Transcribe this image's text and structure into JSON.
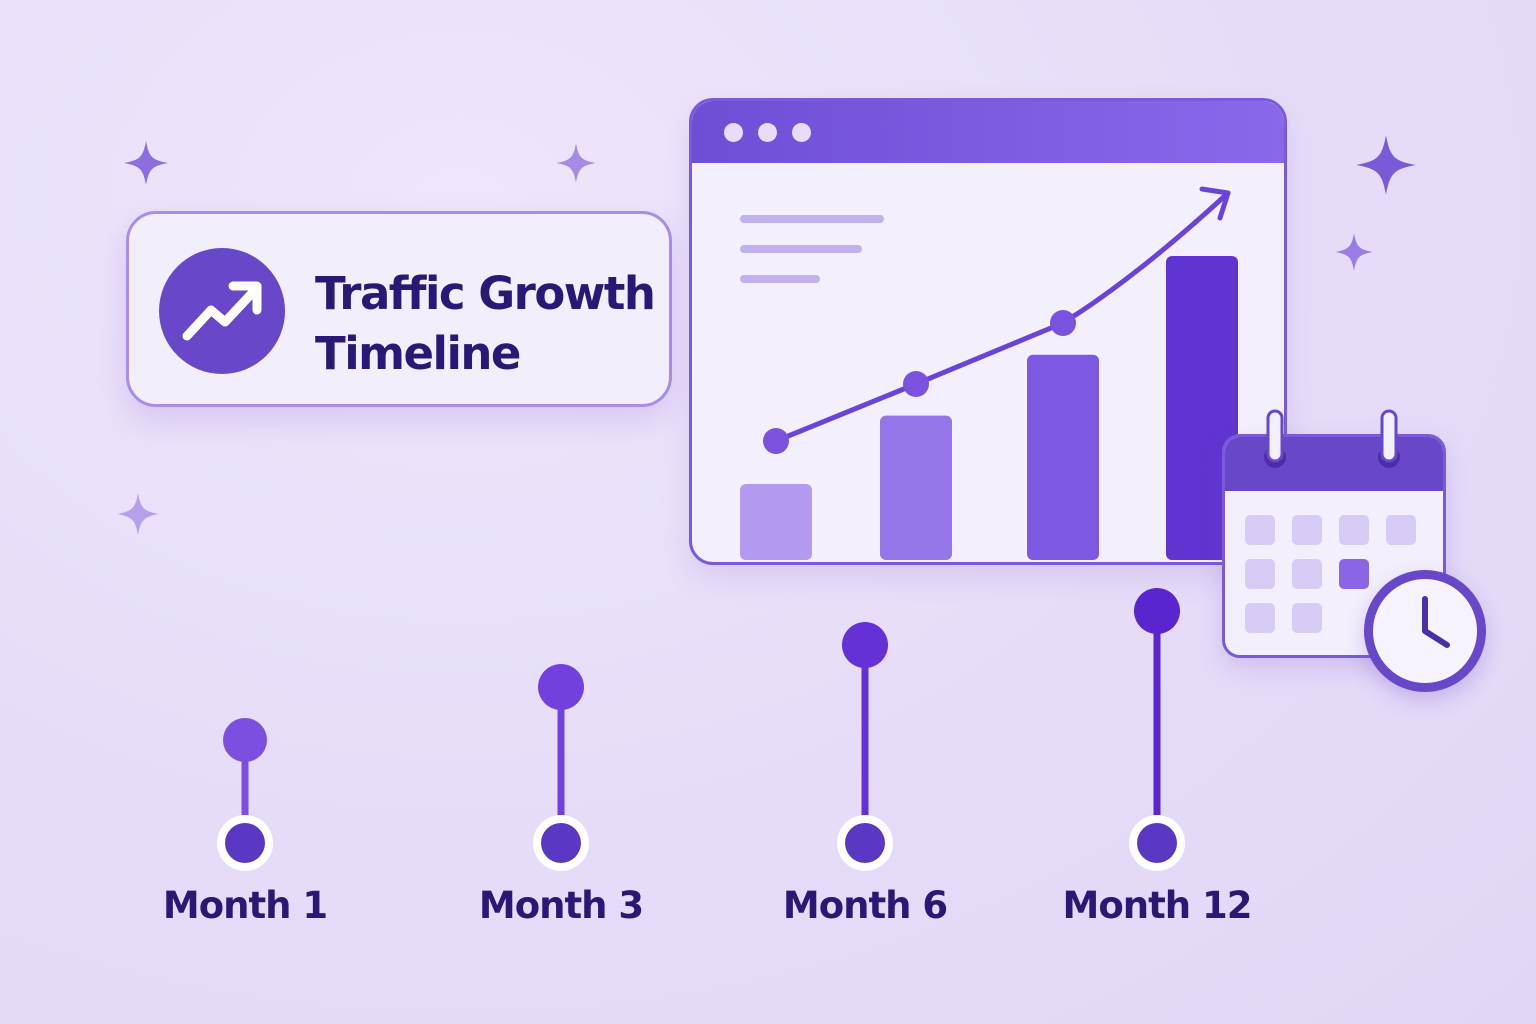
{
  "title": {
    "line1": "Traffic Growth",
    "line2": "Timeline"
  },
  "timeline": {
    "milestones": [
      {
        "label": "Month 1",
        "color": "#7c4fe0"
      },
      {
        "label": "Month 3",
        "color": "#7240dc"
      },
      {
        "label": "Month 6",
        "color": "#6530d6"
      },
      {
        "label": "Month 12",
        "color": "#5a25cf"
      }
    ]
  },
  "chart_data": {
    "type": "bar",
    "categories": [
      "",
      "",
      "",
      ""
    ],
    "values": [
      20,
      38,
      54,
      80
    ],
    "trend_line": [
      38,
      52,
      68,
      100
    ],
    "bar_colors": [
      "#b39af0",
      "#9576e8",
      "#7d58e2",
      "#6034d0"
    ]
  },
  "colors": {
    "accent": "#6848c9",
    "text": "#2a1776",
    "background": "#e6dcf8"
  },
  "icons": [
    "trend-up-icon",
    "sparkle-icon",
    "calendar-icon",
    "clock-icon"
  ]
}
